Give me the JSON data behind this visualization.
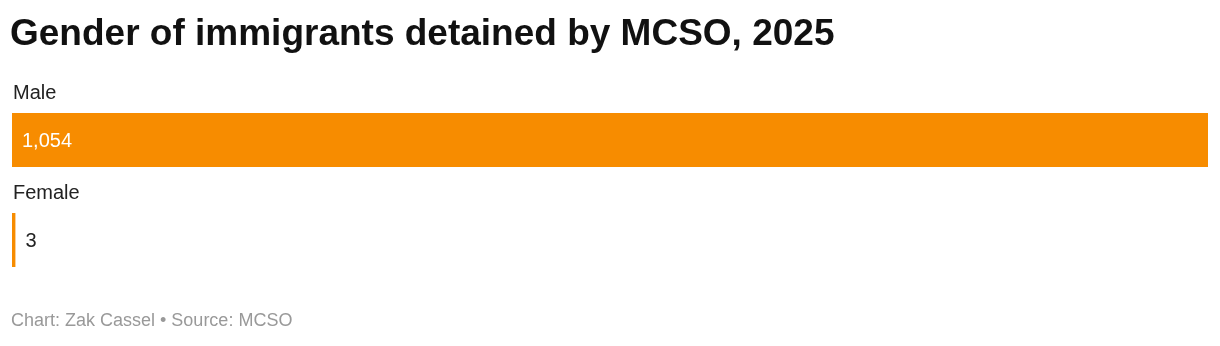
{
  "chart_data": {
    "type": "bar",
    "orientation": "horizontal",
    "title": "Gender of immigrants detained by MCSO, 2025",
    "categories": [
      "Male",
      "Female"
    ],
    "values": [
      1054,
      3
    ],
    "value_labels": [
      "1,054",
      "3"
    ],
    "color": "#f78c00",
    "annotations": [
      "Chart: Zak Cassel • Source: MCSO"
    ]
  }
}
